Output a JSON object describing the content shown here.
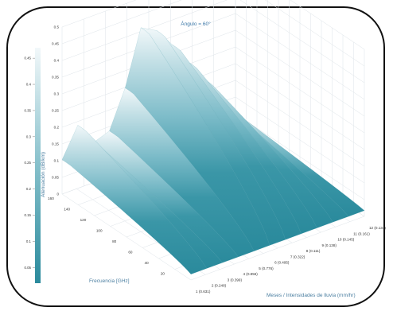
{
  "chart_data": {
    "type": "surface-3d",
    "title": "Ángulo = 60°",
    "xlabel": "Frecuencia [GHz]",
    "ylabel": "Meses / Intensidades de lluvia (mm/hr)",
    "zlabel": "Atenuación (dB/km)",
    "x_ticks": [
      "20",
      "40",
      "60",
      "80",
      "100",
      "120",
      "140",
      "160"
    ],
    "y_ticks": [
      "1 (0.631)",
      "2 (0.248)",
      "3 (0.399)",
      "4 (0.856)",
      "5 (0.776)",
      "6 (0.495)",
      "7 (0.322)",
      "8 (0.111)",
      "9 (0.138)",
      "10 (0.145)",
      "11 (0.161)",
      "12 (0.134)"
    ],
    "z_ticks": [
      "0",
      "0.05",
      "0.1",
      "0.15",
      "0.2",
      "0.25",
      "0.3",
      "0.35",
      "0.4",
      "0.45",
      "0.5"
    ],
    "colorbar_ticks": [
      "0.05",
      "0.1",
      "0.15",
      "0.2",
      "0.25",
      "0.3",
      "0.35",
      "0.4",
      "0.45"
    ],
    "zlim": [
      0,
      0.5
    ],
    "colormap": [
      "#2a8a9c",
      "#3c98a9",
      "#6fb4c1",
      "#a8d2db",
      "#e6f2f5"
    ],
    "ridge_months": [
      1,
      2,
      3,
      4,
      5,
      6,
      7,
      8,
      9,
      10,
      11,
      12
    ],
    "ridge_peaks": [
      0.12,
      0.22,
      0.14,
      0.16,
      0.29,
      0.48,
      0.45,
      0.38,
      0.3,
      0.22,
      0.12,
      0.06
    ]
  }
}
